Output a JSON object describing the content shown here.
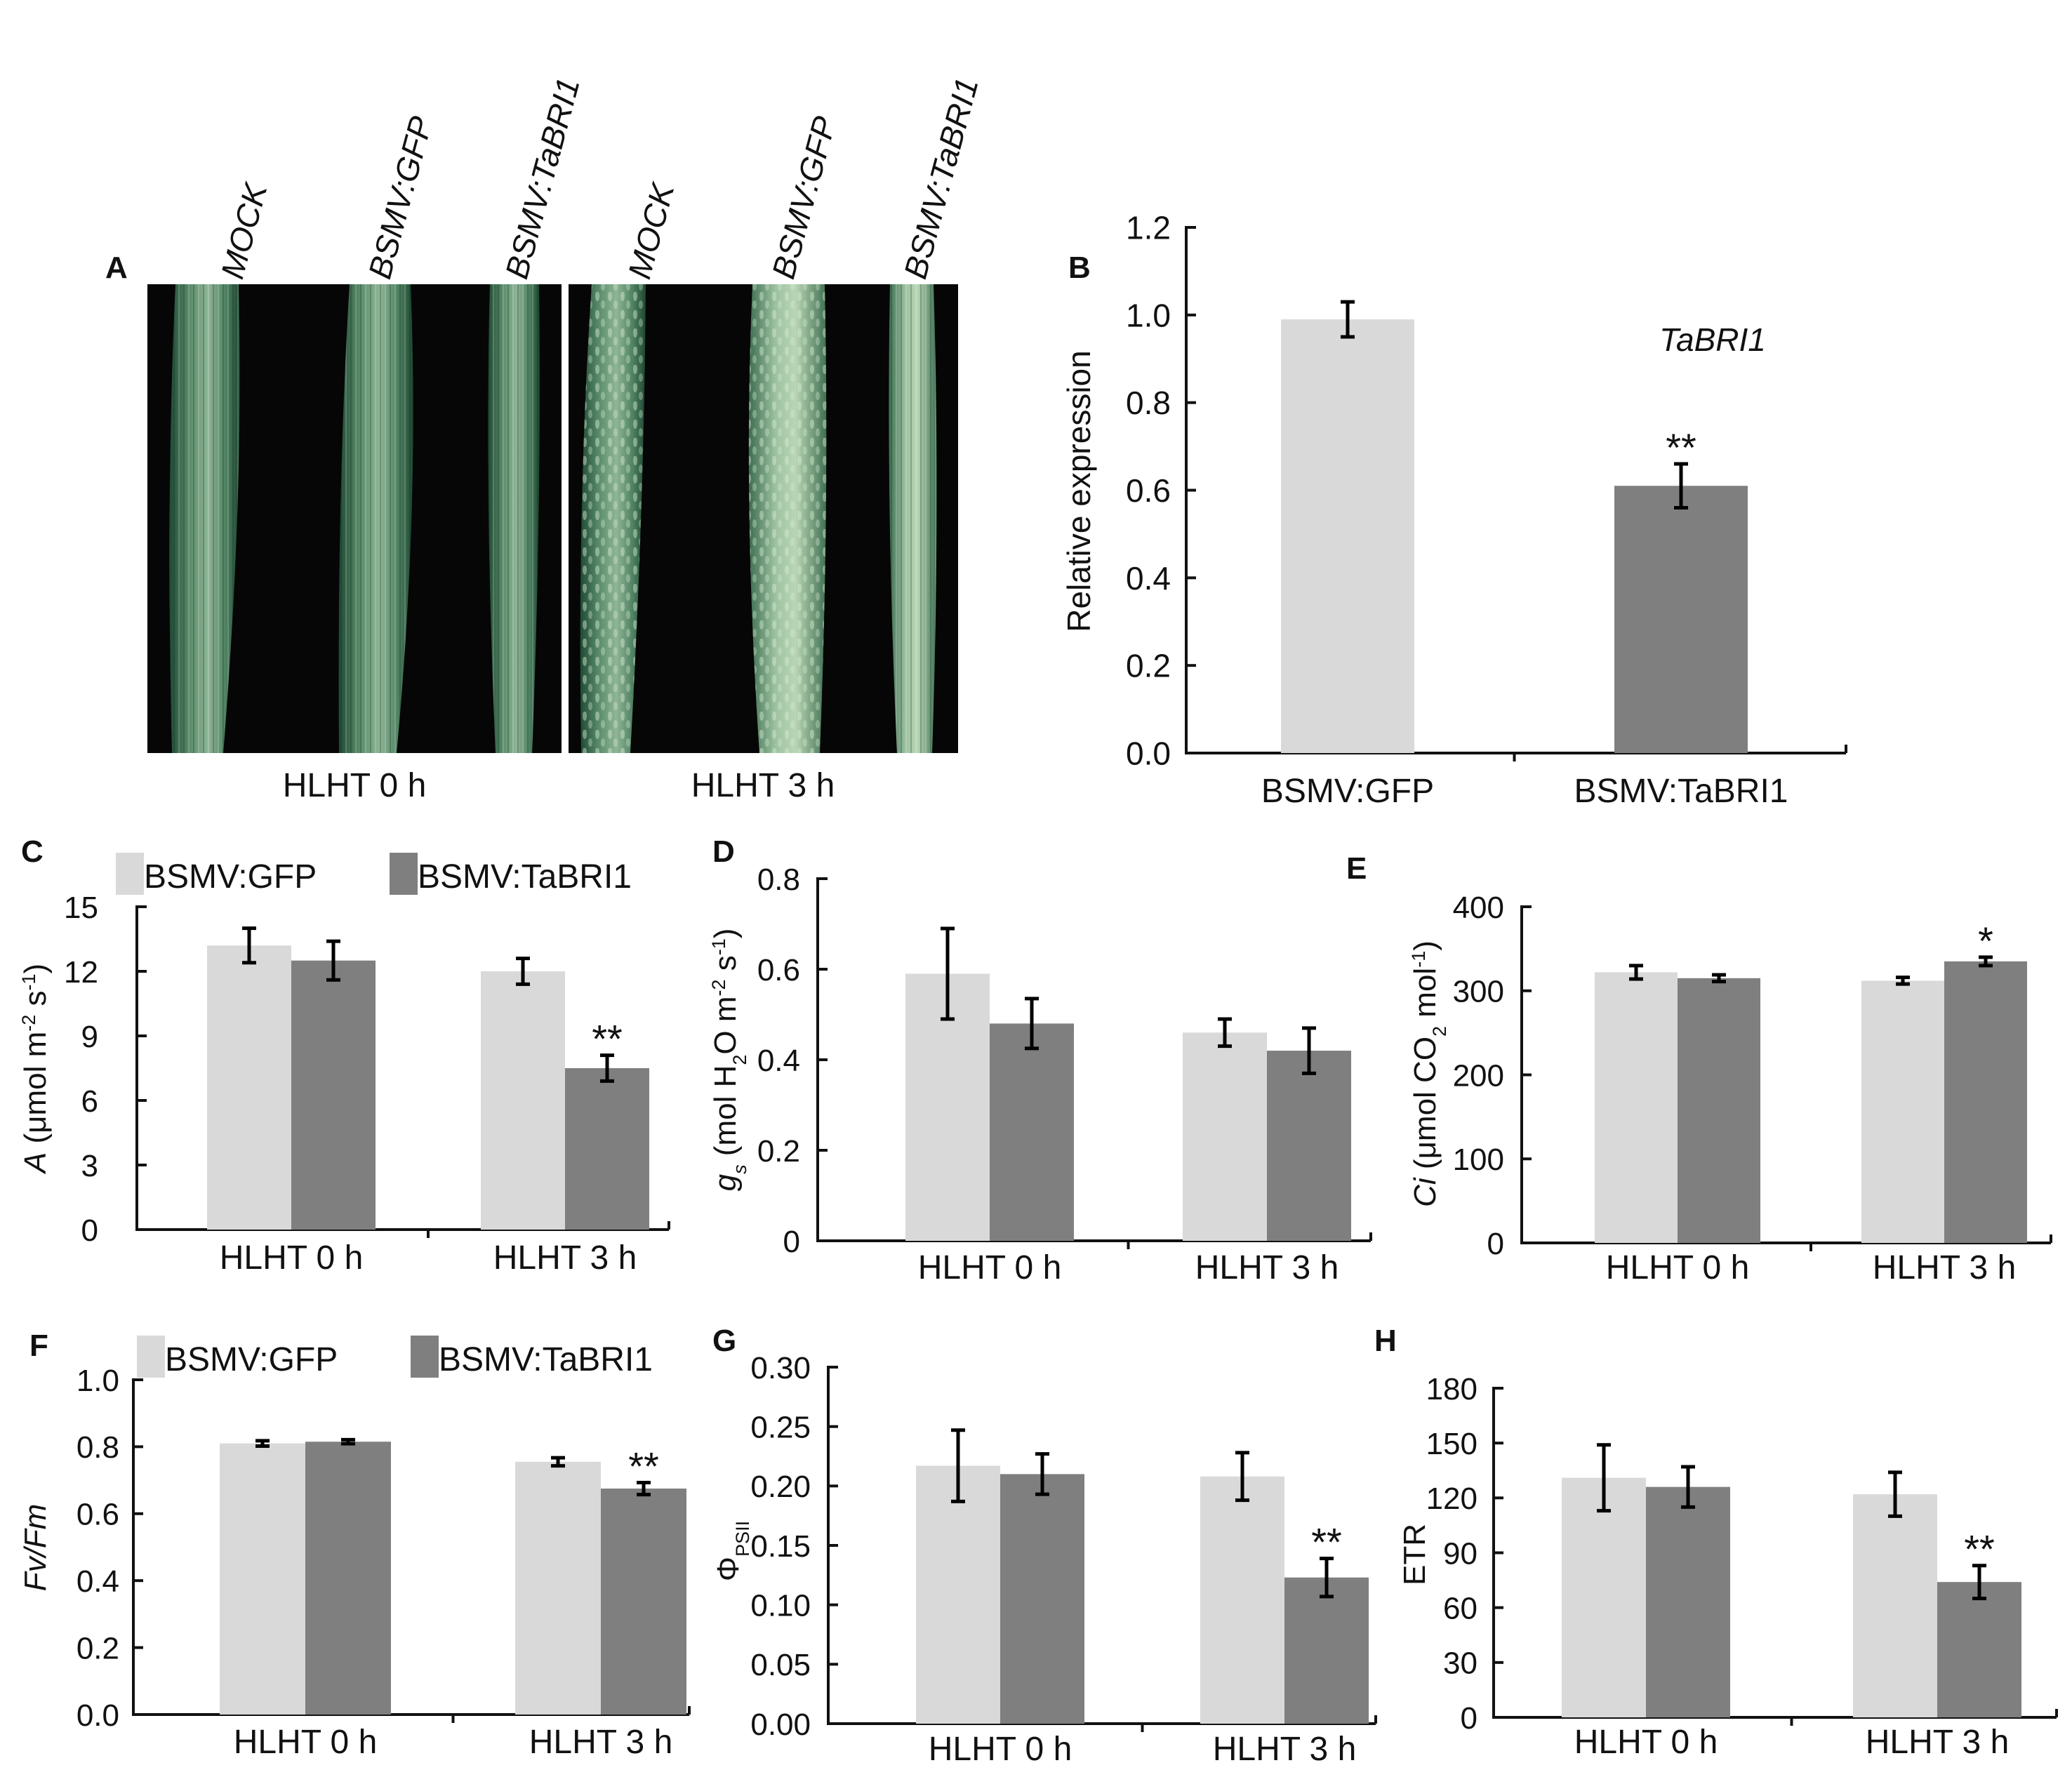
{
  "colors": {
    "gfp": "#d9d9d9",
    "tabri1": "#7f7f7f",
    "axis": "#111111",
    "leaf": "#3e7155",
    "photo_bg": "#060606"
  },
  "panel_a": {
    "letter": "A",
    "columns": [
      "MOCK",
      "BSMV:GFP",
      "BSMV:TaBRI1",
      "MOCK",
      "BSMV:GFP",
      "BSMV:TaBRI1"
    ],
    "captions": [
      "HLHT 0 h",
      "HLHT 3 h"
    ]
  },
  "chart_data": [
    {
      "panel": "B",
      "type": "bar",
      "categories": [
        "BSMV:GFP",
        "BSMV:TaBRI1"
      ],
      "values": [
        0.99,
        0.61
      ],
      "errors": [
        0.04,
        0.05
      ],
      "significance": [
        "",
        "**"
      ],
      "ylabel": "Relative expression",
      "annotation": "TaBRI1",
      "ylim": [
        0,
        1.2
      ],
      "ticks": [
        "0.0",
        "0.2",
        "0.4",
        "0.6",
        "0.8",
        "1.0",
        "1.2"
      ]
    },
    {
      "panel": "C",
      "type": "bar",
      "categories": [
        "HLHT 0 h",
        "HLHT 3 h"
      ],
      "series": [
        {
          "name": "BSMV:GFP",
          "values": [
            13.2,
            12.0
          ],
          "errors": [
            0.8,
            0.6
          ],
          "significance": [
            "",
            ""
          ]
        },
        {
          "name": "BSMV:TaBRI1",
          "values": [
            12.5,
            7.5
          ],
          "errors": [
            0.9,
            0.6
          ],
          "significance": [
            "",
            "**"
          ]
        }
      ],
      "ylabel": "A (μmol m-2 s-1)",
      "ylim": [
        0,
        15
      ],
      "ticks": [
        "0",
        "3",
        "6",
        "9",
        "12",
        "15"
      ]
    },
    {
      "panel": "D",
      "type": "bar",
      "categories": [
        "HLHT 0 h",
        "HLHT 3 h"
      ],
      "series": [
        {
          "name": "BSMV:GFP",
          "values": [
            0.59,
            0.46
          ],
          "errors": [
            0.1,
            0.03
          ],
          "significance": [
            "",
            ""
          ]
        },
        {
          "name": "BSMV:TaBRI1",
          "values": [
            0.48,
            0.42
          ],
          "errors": [
            0.055,
            0.05
          ],
          "significance": [
            "",
            ""
          ]
        }
      ],
      "ylabel": "gs (mol H2O m-2 s-1)",
      "ylim": [
        0,
        0.8
      ],
      "ticks": [
        "0",
        "0.2",
        "0.4",
        "0.6",
        "0.8"
      ]
    },
    {
      "panel": "E",
      "type": "bar",
      "categories": [
        "HLHT 0 h",
        "HLHT 3 h"
      ],
      "series": [
        {
          "name": "BSMV:GFP",
          "values": [
            322,
            312
          ],
          "errors": [
            8,
            4
          ],
          "significance": [
            "",
            ""
          ]
        },
        {
          "name": "BSMV:TaBRI1",
          "values": [
            315,
            335
          ],
          "errors": [
            4,
            5
          ],
          "significance": [
            "",
            "*"
          ]
        }
      ],
      "ylabel": "Ci (μmol CO2 mol-1)",
      "ylim": [
        0,
        400
      ],
      "ticks": [
        "0",
        "100",
        "200",
        "300",
        "400"
      ]
    },
    {
      "panel": "F",
      "type": "bar",
      "categories": [
        "HLHT 0 h",
        "HLHT 3 h"
      ],
      "series": [
        {
          "name": "BSMV:GFP",
          "values": [
            0.81,
            0.755
          ],
          "errors": [
            0.008,
            0.012
          ],
          "significance": [
            "",
            ""
          ]
        },
        {
          "name": "BSMV:TaBRI1",
          "values": [
            0.815,
            0.675
          ],
          "errors": [
            0.006,
            0.018
          ],
          "significance": [
            "",
            "**"
          ]
        }
      ],
      "ylabel": "Fv/Fm",
      "ylim": [
        0,
        1.0
      ],
      "ticks": [
        "0.0",
        "0.2",
        "0.4",
        "0.6",
        "0.8",
        "1.0"
      ]
    },
    {
      "panel": "G",
      "type": "bar",
      "categories": [
        "HLHT 0 h",
        "HLHT 3 h"
      ],
      "series": [
        {
          "name": "BSMV:GFP",
          "values": [
            0.217,
            0.208
          ],
          "errors": [
            0.03,
            0.02
          ],
          "significance": [
            "",
            ""
          ]
        },
        {
          "name": "BSMV:TaBRI1",
          "values": [
            0.21,
            0.123
          ],
          "errors": [
            0.017,
            0.016
          ],
          "significance": [
            "",
            "**"
          ]
        }
      ],
      "ylabel": "ΦPSII",
      "ylim": [
        0,
        0.3
      ],
      "ticks": [
        "0.00",
        "0.05",
        "0.10",
        "0.15",
        "0.20",
        "0.25",
        "0.30"
      ]
    },
    {
      "panel": "H",
      "type": "bar",
      "categories": [
        "HLHT 0 h",
        "HLHT 3 h"
      ],
      "series": [
        {
          "name": "BSMV:GFP",
          "values": [
            131,
            122
          ],
          "errors": [
            18,
            12
          ],
          "significance": [
            "",
            ""
          ]
        },
        {
          "name": "BSMV:TaBRI1",
          "values": [
            126,
            74
          ],
          "errors": [
            11,
            9
          ],
          "significance": [
            "",
            "**"
          ]
        }
      ],
      "ylabel": "ETR",
      "ylim": [
        0,
        180
      ],
      "ticks": [
        "0",
        "30",
        "60",
        "90",
        "120",
        "150",
        "180"
      ]
    }
  ]
}
